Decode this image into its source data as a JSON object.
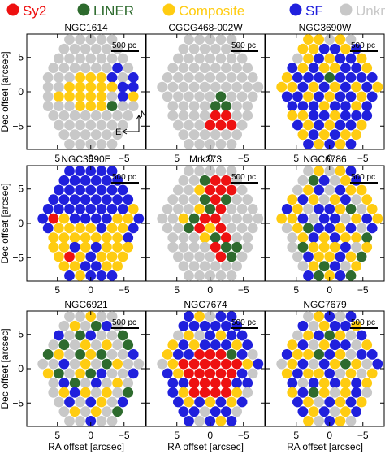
{
  "legend": [
    {
      "label": "Sy2",
      "color": "#ee1111"
    },
    {
      "label": "LINER",
      "color": "#2e6b2e"
    },
    {
      "label": "Composite",
      "color": "#ffcc11"
    },
    {
      "label": "SF",
      "color": "#2020dd"
    },
    {
      "label": "Unknown",
      "color": "#c8c8c8"
    }
  ],
  "chart_data": {
    "type": "scatter",
    "description_units": "arcsec",
    "xlabel": "RA offset [arcsec]",
    "ylabel": "Dec offset [arcsec]",
    "xlim": [
      9.6,
      -8.2
    ],
    "ylim": [
      -8.4,
      8.4
    ],
    "xticks": [
      5,
      0,
      -5
    ],
    "yticks": [
      5,
      0,
      -5
    ],
    "scalebar_label": "500 pc",
    "compass": {
      "north": "N",
      "east": "E"
    },
    "categories": [
      "Sy2",
      "LINER",
      "Composite",
      "SF",
      "Unknown"
    ],
    "panels": [
      {
        "name": "NGC1614",
        "rows": [
          "UUUUU",
          "UUUUUU",
          "UUUUUUU",
          "UUUUUUSU",
          "UUUCCCSUS",
          "UUCCCCCSS",
          "UCCCCCUSC",
          "UUUCCCLUU",
          "UUUUUUUU",
          "UUUUUUU",
          "UUUUUU",
          "UUUUU"
        ]
      },
      {
        "name": "CGCG468-002W",
        "rows": [
          "UUUUU",
          "UUUUUU",
          "UUUUUUU",
          "UUUUUUUU",
          "UUUUUUUUU",
          "UUUUUUUUUU",
          "UUUUULUUU",
          "UUUULLUU",
          "UUUURRUU",
          "UUURRRU",
          "UUUUUU",
          "UUUUU"
        ]
      },
      {
        "name": "NGC3690W",
        "rows": [
          "CCUCU",
          "CCSSCS",
          "UCSCSSC",
          "SCSCCSSC",
          "CSSSLSSSS",
          "CCSCSCSCSC",
          "SSCSCSSCS",
          "SSSCSSCS",
          "CCSSCSSS",
          "SCSCSSC",
          "CSCSCC",
          "SCSCS"
        ]
      },
      {
        "name": "NGC3690E",
        "rows": [
          "SSSSS",
          "SSSSSS",
          "SSSSSSS",
          "SSSSSSSS",
          "SSSSSSSSC",
          "SRCSSSSCCS",
          "SCCCCSCCS",
          "CCCCCCCS",
          "CCSCSCCC",
          "CRCSCCC",
          "CCSSCC",
          "SCSSS"
        ]
      },
      {
        "name": "Mrk273",
        "rows": [
          "UUUUU",
          "UULRRU",
          "UUCRRRU",
          "UUULRLUU",
          "UUUCLRUUU",
          "UUCLRRUUUU",
          "UULRCRUUU",
          "UUUCLRUU",
          "UUUURLLU",
          "UUUURLU",
          "UUUUUU",
          "UUUUU"
        ]
      },
      {
        "name": "NGC6786",
        "rows": [
          "UCUCS",
          "ULSUCS",
          "UCSUSCC",
          "CSCUCSUC",
          "SCUSSCLUC",
          "CCSUSSUCSC",
          "UCLSSCSUS",
          "UCSCSCCL",
          "ULCCCSUC",
          "USCCSCL",
          "UCLSUC",
          "SLCSL"
        ]
      },
      {
        "name": "NGC6921",
        "rows": [
          "UUCUU",
          "UCULSU",
          "SULSUUL",
          "ULUCUCUL",
          "LCULCLUUS",
          "UUSUCULCUU",
          "CLUCLSUUS",
          "USLUSUCU",
          "UCSCUCUL",
          "USUSCUS",
          "UCUCUL",
          "UUSUU"
        ]
      },
      {
        "name": "NGC7674",
        "rows": [
          "SCUSS",
          "SSSSSS",
          "UCUSCSS",
          "CSCSSSCS",
          "CSSRRRLSU",
          "UCRRRRRRCS",
          "SCRRRRRSU",
          "SSRRRRSS",
          "SCRRRRCU",
          "SCSCSCS",
          "SSUSSU",
          "SUSCS"
        ]
      },
      {
        "name": "NGC7679",
        "rows": [
          "UCSUS",
          "SUCSSC",
          "UCSLCUS",
          "CSUCSSUC",
          "SCCLSCUSS",
          "UCSUSCLCUS",
          "CSCCSUCUC",
          "SUSCSCSC",
          "CSLCUCSU",
          "SCUSCSC",
          "SCSUCS",
          "CUSCU"
        ]
      }
    ]
  }
}
